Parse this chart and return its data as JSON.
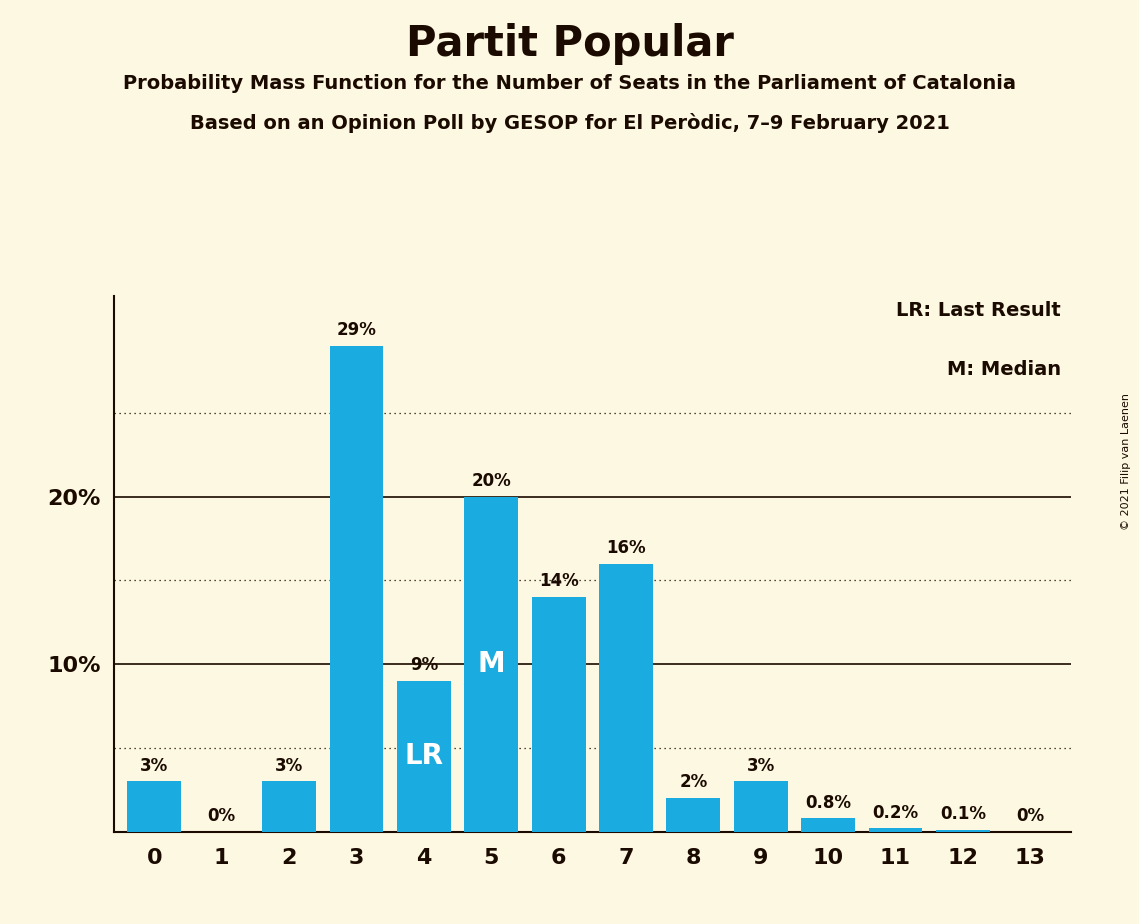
{
  "title": "Partit Popular",
  "subtitle1": "Probability Mass Function for the Number of Seats in the Parliament of Catalonia",
  "subtitle2": "Based on an Opinion Poll by GESOP for El Peròdic, 7–9 February 2021",
  "copyright": "© 2021 Filip van Laenen",
  "categories": [
    0,
    1,
    2,
    3,
    4,
    5,
    6,
    7,
    8,
    9,
    10,
    11,
    12,
    13
  ],
  "values": [
    3,
    0,
    3,
    29,
    9,
    20,
    14,
    16,
    2,
    3,
    0.8,
    0.2,
    0.1,
    0
  ],
  "bar_color": "#1aabe0",
  "bar_labels": [
    "3%",
    "0%",
    "3%",
    "29%",
    "9%",
    "20%",
    "14%",
    "16%",
    "2%",
    "3%",
    "0.8%",
    "0.2%",
    "0.1%",
    "0%"
  ],
  "background_color": "#fdf8e1",
  "text_color": "#1a0a00",
  "ylim": [
    0,
    32
  ],
  "solid_lines": [
    10,
    20
  ],
  "dotted_lines": [
    5,
    15,
    25
  ],
  "lr_seat": 4,
  "median_seat": 5,
  "legend_lr": "LR: Last Result",
  "legend_m": "M: Median",
  "label_lr": "LR",
  "label_m": "M"
}
